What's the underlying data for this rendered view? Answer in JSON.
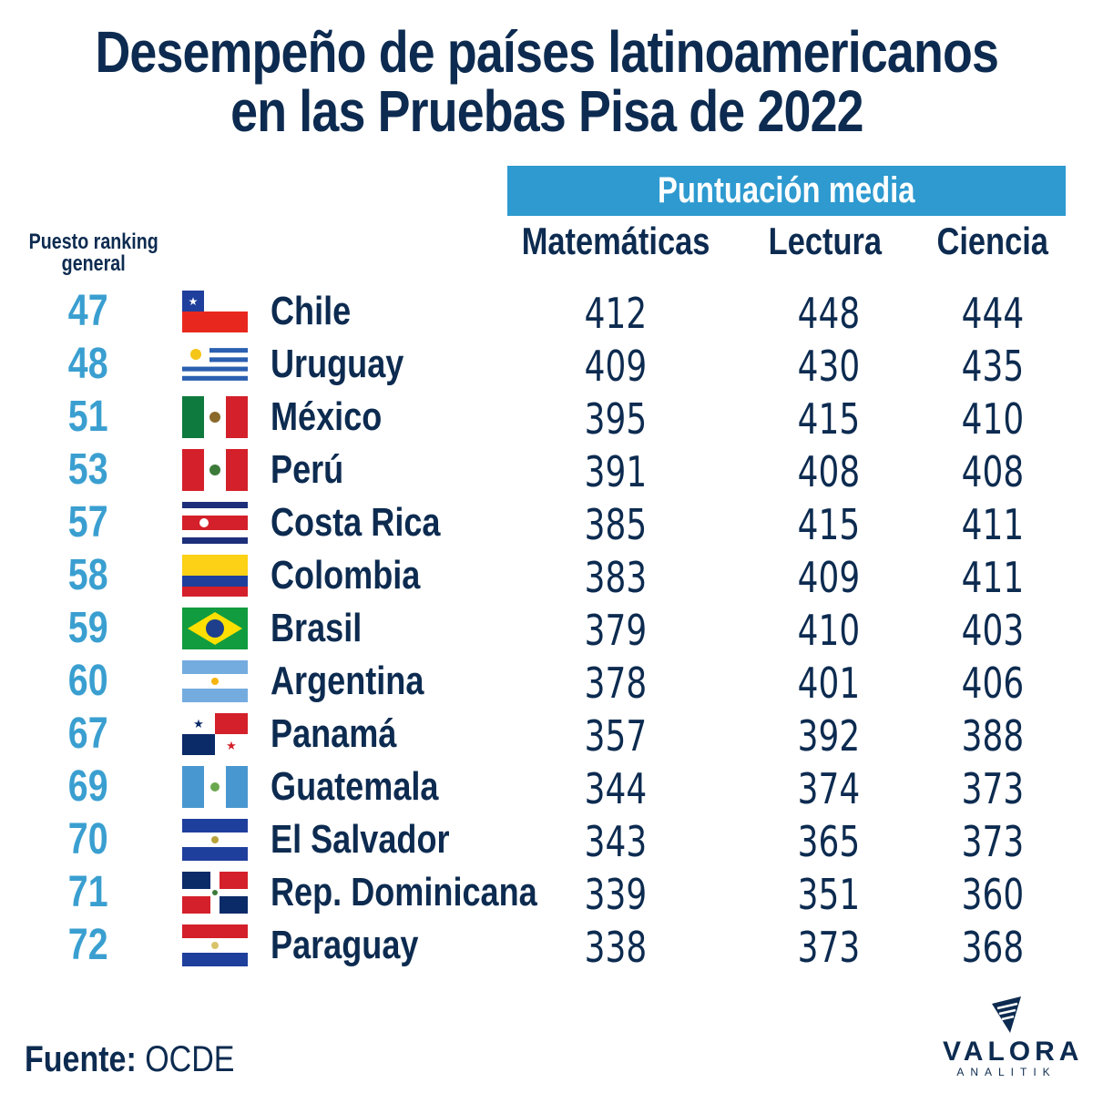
{
  "title": [
    "Desempeño de países latinoamericanos",
    "en las Pruebas Pisa de 2022"
  ],
  "group_header": "Puntuación media",
  "rank_header": [
    "Puesto ranking",
    "general"
  ],
  "columns": [
    "Matemáticas",
    "Lectura",
    "Ciencia"
  ],
  "source_label": "Fuente:",
  "source_value": "OCDE",
  "logo": {
    "line1": "VALORA",
    "line2": "ANALITIK"
  },
  "colors": {
    "navy": "#0d2b50",
    "blue": "#3a9fd0",
    "header_bar": "#2e9ad0"
  },
  "chart_data": {
    "type": "table",
    "title": "Desempeño de países latinoamericanos en las Pruebas Pisa de 2022",
    "headers": [
      "Puesto ranking general",
      "",
      "Matemáticas",
      "Lectura",
      "Ciencia"
    ],
    "rows": [
      {
        "rank": "47",
        "flag": "chile",
        "country": "Chile",
        "math": "412",
        "reading": "448",
        "science": "444"
      },
      {
        "rank": "48",
        "flag": "uruguay",
        "country": "Uruguay",
        "math": "409",
        "reading": "430",
        "science": "435"
      },
      {
        "rank": "51",
        "flag": "mexico",
        "country": "México",
        "math": "395",
        "reading": "415",
        "science": "410"
      },
      {
        "rank": "53",
        "flag": "peru",
        "country": "Perú",
        "math": "391",
        "reading": "408",
        "science": "408"
      },
      {
        "rank": "57",
        "flag": "costa-rica",
        "country": "Costa Rica",
        "math": "385",
        "reading": "415",
        "science": "411"
      },
      {
        "rank": "58",
        "flag": "colombia",
        "country": "Colombia",
        "math": "383",
        "reading": "409",
        "science": "411"
      },
      {
        "rank": "59",
        "flag": "brasil",
        "country": "Brasil",
        "math": "379",
        "reading": "410",
        "science": "403"
      },
      {
        "rank": "60",
        "flag": "argentina",
        "country": "Argentina",
        "math": "378",
        "reading": "401",
        "science": "406"
      },
      {
        "rank": "67",
        "flag": "panama",
        "country": "Panamá",
        "math": "357",
        "reading": "392",
        "science": "388"
      },
      {
        "rank": "69",
        "flag": "guatemala",
        "country": "Guatemala",
        "math": "344",
        "reading": "374",
        "science": "373"
      },
      {
        "rank": "70",
        "flag": "el-salvador",
        "country": "El Salvador",
        "math": "343",
        "reading": "365",
        "science": "373"
      },
      {
        "rank": "71",
        "flag": "rep-dominicana",
        "country": "Rep. Dominicana",
        "math": "339",
        "reading": "351",
        "science": "360"
      },
      {
        "rank": "72",
        "flag": "paraguay",
        "country": "Paraguay",
        "math": "338",
        "reading": "373",
        "science": "368"
      }
    ]
  }
}
